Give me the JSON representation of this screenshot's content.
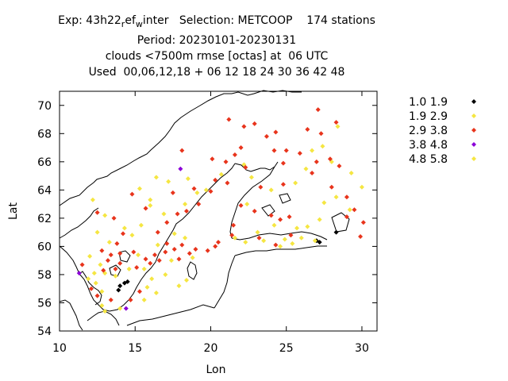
{
  "title_lines": [
    "Exp: 43h22_ref_winter   Selection: METCOOP    174 stations",
    "Period: 20230101-20230131",
    "clouds <7500m rmse [octas] at  06 UTC",
    "Used  00,06,12,18 + 06 12 18 24 30 36 42 48"
  ],
  "chart_data": {
    "type": "scatter",
    "xlabel": "Lon",
    "ylabel": "Lat",
    "xlim": [
      10,
      31
    ],
    "ylim": [
      54,
      71
    ],
    "xticks": [
      10,
      15,
      20,
      25,
      30
    ],
    "yticks": [
      54,
      56,
      58,
      60,
      62,
      64,
      66,
      68,
      70
    ],
    "legend_position": "top-right outside",
    "series": [
      {
        "name": "1.0 1.9",
        "color": "#000000",
        "points": [
          [
            14.3,
            57.4
          ],
          [
            14.0,
            57.2
          ],
          [
            14.5,
            57.5
          ],
          [
            13.9,
            56.9
          ],
          [
            27.2,
            60.3
          ],
          [
            27.0,
            60.4
          ],
          [
            28.3,
            61.0
          ]
        ]
      },
      {
        "name": "1.9 2.9",
        "color": "#f5e642",
        "points": [
          [
            12.2,
            63.3
          ],
          [
            13.0,
            62.2
          ],
          [
            12.5,
            61.0
          ],
          [
            13.3,
            60.3
          ],
          [
            14.3,
            61.3
          ],
          [
            14.8,
            60.8
          ],
          [
            15.4,
            61.5
          ],
          [
            16.0,
            63.3
          ],
          [
            15.3,
            64.1
          ],
          [
            16.4,
            64.9
          ],
          [
            16.0,
            62.9
          ],
          [
            16.9,
            62.3
          ],
          [
            18.3,
            63.0
          ],
          [
            19.1,
            63.8
          ],
          [
            19.7,
            64.0
          ],
          [
            17.2,
            64.6
          ],
          [
            20.7,
            65.1
          ],
          [
            22.2,
            65.8
          ],
          [
            22.7,
            64.9
          ],
          [
            24.0,
            64.0
          ],
          [
            25.6,
            64.5
          ],
          [
            26.3,
            65.5
          ],
          [
            26.7,
            66.8
          ],
          [
            27.4,
            67.1
          ],
          [
            28.0,
            66.0
          ],
          [
            29.3,
            65.2
          ],
          [
            28.3,
            63.5
          ],
          [
            29.2,
            62.6
          ],
          [
            27.2,
            61.9
          ],
          [
            25.7,
            61.3
          ],
          [
            24.2,
            61.5
          ],
          [
            23.5,
            60.4
          ],
          [
            24.6,
            60.0
          ],
          [
            25.4,
            60.2
          ],
          [
            26.0,
            60.6
          ],
          [
            26.9,
            60.4
          ],
          [
            12.0,
            59.3
          ],
          [
            12.7,
            58.7
          ],
          [
            13.0,
            58.1
          ],
          [
            11.9,
            57.7
          ],
          [
            12.4,
            57.4
          ],
          [
            13.7,
            57.9
          ],
          [
            14.6,
            58.4
          ],
          [
            15.6,
            58.4
          ],
          [
            16.1,
            57.7
          ],
          [
            16.4,
            56.7
          ],
          [
            15.6,
            56.2
          ],
          [
            14.0,
            55.6
          ],
          [
            13.0,
            55.4
          ],
          [
            12.8,
            56.8
          ],
          [
            17.0,
            58.0
          ],
          [
            17.4,
            59.0
          ],
          [
            17.9,
            57.2
          ],
          [
            18.4,
            57.6
          ],
          [
            18.8,
            59.2
          ],
          [
            15.2,
            59.4
          ],
          [
            16.5,
            60.1
          ],
          [
            17.6,
            60.9
          ],
          [
            18.3,
            60.6
          ],
          [
            12.3,
            58.1
          ],
          [
            12.8,
            55.8
          ],
          [
            15.8,
            57.1
          ],
          [
            30.0,
            64.2
          ],
          [
            28.4,
            68.5
          ],
          [
            27.5,
            63.1
          ],
          [
            23.1,
            61.0
          ],
          [
            21.6,
            60.6
          ],
          [
            22.3,
            60.3
          ],
          [
            24.9,
            60.5
          ],
          [
            26.4,
            61.4
          ]
        ]
      },
      {
        "name": "2.9 3.8",
        "color": "#e8341c",
        "points": [
          [
            12.5,
            62.4
          ],
          [
            13.6,
            62.0
          ],
          [
            14.8,
            63.7
          ],
          [
            15.7,
            62.7
          ],
          [
            14.2,
            60.9
          ],
          [
            13.8,
            60.2
          ],
          [
            12.8,
            59.7
          ],
          [
            13.4,
            59.4
          ],
          [
            14.0,
            59.5
          ],
          [
            14.9,
            59.6
          ],
          [
            15.7,
            59.1
          ],
          [
            16.3,
            59.4
          ],
          [
            17.0,
            59.6
          ],
          [
            17.6,
            59.8
          ],
          [
            18.1,
            60.1
          ],
          [
            17.9,
            59.1
          ],
          [
            19.0,
            59.8
          ],
          [
            19.8,
            59.7
          ],
          [
            20.3,
            60.0
          ],
          [
            18.6,
            59.5
          ],
          [
            16.6,
            59.0
          ],
          [
            16.0,
            58.8
          ],
          [
            14.0,
            58.8
          ],
          [
            13.7,
            58.4
          ],
          [
            12.9,
            58.3
          ],
          [
            12.1,
            57.0
          ],
          [
            12.5,
            56.5
          ],
          [
            13.4,
            56.2
          ],
          [
            14.7,
            56.2
          ],
          [
            15.3,
            56.8
          ],
          [
            11.5,
            58.7
          ],
          [
            13.2,
            59.0
          ],
          [
            15.1,
            58.5
          ],
          [
            17.5,
            63.8
          ],
          [
            17.8,
            62.3
          ],
          [
            17.1,
            61.7
          ],
          [
            18.1,
            66.8
          ],
          [
            20.1,
            66.2
          ],
          [
            21.0,
            66.0
          ],
          [
            21.6,
            66.5
          ],
          [
            22.0,
            67.0
          ],
          [
            23.7,
            67.8
          ],
          [
            24.2,
            66.8
          ],
          [
            21.2,
            69.0
          ],
          [
            22.2,
            68.5
          ],
          [
            22.9,
            68.7
          ],
          [
            24.3,
            68.1
          ],
          [
            25.0,
            66.8
          ],
          [
            25.9,
            66.6
          ],
          [
            27.1,
            69.7
          ],
          [
            26.4,
            68.3
          ],
          [
            27.3,
            68.0
          ],
          [
            28.3,
            68.8
          ],
          [
            21.1,
            64.5
          ],
          [
            23.3,
            64.2
          ],
          [
            24.8,
            64.4
          ],
          [
            26.7,
            65.2
          ],
          [
            27.0,
            66.0
          ],
          [
            27.9,
            66.2
          ],
          [
            28.5,
            65.7
          ],
          [
            28.0,
            64.2
          ],
          [
            29.0,
            63.5
          ],
          [
            29.0,
            62.1
          ],
          [
            29.5,
            62.6
          ],
          [
            25.2,
            62.1
          ],
          [
            24.6,
            61.9
          ],
          [
            24.0,
            62.2
          ],
          [
            22.9,
            62.5
          ],
          [
            22.0,
            62.9
          ],
          [
            21.5,
            61.5
          ],
          [
            21.4,
            60.8
          ],
          [
            20.5,
            60.3
          ],
          [
            19.2,
            63.0
          ],
          [
            18.9,
            64.1
          ],
          [
            20.3,
            64.7
          ],
          [
            22.3,
            65.6
          ],
          [
            24.8,
            65.9
          ],
          [
            16.5,
            61.0
          ],
          [
            17.1,
            60.2
          ],
          [
            29.9,
            60.7
          ],
          [
            30.1,
            61.7
          ],
          [
            20.0,
            63.9
          ],
          [
            18.4,
            62.5
          ],
          [
            23.2,
            60.6
          ],
          [
            24.3,
            60.1
          ],
          [
            25.3,
            60.8
          ]
        ]
      },
      {
        "name": "3.8 4.8",
        "color": "#8b00d8",
        "points": [
          [
            18.0,
            65.5
          ],
          [
            11.3,
            58.1
          ],
          [
            14.4,
            55.6
          ]
        ]
      },
      {
        "name": "4.8 5.8",
        "color": "#f5e642",
        "points": [
          [
            18.5,
            64.8
          ],
          [
            22.4,
            63.0
          ]
        ]
      }
    ]
  }
}
